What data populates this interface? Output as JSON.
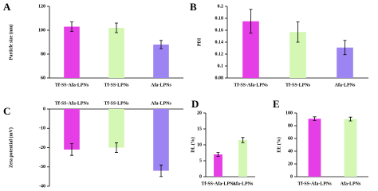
{
  "chart_data": [
    {
      "type": "bar",
      "panel": "A",
      "ylabel": "Particle size (nm)",
      "categories": [
        "Tf-SS-Afa-LPNs",
        "Tf-SS-LPNs",
        "Afa-LPNs"
      ],
      "values": [
        103,
        102,
        88
      ],
      "errors": [
        4,
        4,
        3.5
      ],
      "colors": [
        "#e63ee6",
        "#d4f7b4",
        "#9c85f2"
      ],
      "ylim": [
        60,
        120
      ],
      "yticks": [
        60,
        80,
        100,
        120
      ],
      "x_axis_position": "bottom"
    },
    {
      "type": "bar",
      "panel": "B",
      "ylabel": "PDI",
      "categories": [
        "Tf-SS-Afa-LPNs",
        "Tf-SS-LPNs",
        "Afa-LPNs"
      ],
      "values": [
        0.175,
        0.157,
        0.131
      ],
      "errors": [
        0.02,
        0.017,
        0.012
      ],
      "colors": [
        "#e63ee6",
        "#d4f7b4",
        "#9c85f2"
      ],
      "ylim": [
        0.08,
        0.2
      ],
      "yticks": [
        0.08,
        0.1,
        0.12,
        0.14,
        0.16,
        0.18,
        0.2
      ],
      "x_axis_position": "bottom"
    },
    {
      "type": "bar",
      "panel": "C",
      "ylabel": "Zeta potential (mV)",
      "categories": [
        "Tf-SS-Afa-LPNs",
        "Tf-SS-LPNs",
        "Afa-LPNs"
      ],
      "values": [
        -21,
        -20,
        -32
      ],
      "errors": [
        3,
        2.5,
        3
      ],
      "colors": [
        "#e63ee6",
        "#d4f7b4",
        "#9c85f2"
      ],
      "ylim": [
        -40,
        0
      ],
      "yticks": [
        0,
        -10,
        -20,
        -30,
        -40
      ],
      "x_axis_position": "top"
    },
    {
      "type": "bar",
      "panel": "D",
      "ylabel": "DL (%)",
      "categories": [
        "Tf-SS-Afa-LPNs",
        "Afa-LPNs"
      ],
      "values": [
        7,
        11.5
      ],
      "errors": [
        0.6,
        0.8
      ],
      "colors": [
        "#e63ee6",
        "#d4f7b4"
      ],
      "ylim": [
        0,
        20
      ],
      "yticks": [
        0,
        5,
        10,
        15,
        20
      ],
      "x_axis_position": "bottom"
    },
    {
      "type": "bar",
      "panel": "E",
      "ylabel": "EE (%)",
      "categories": [
        "Tf-SS-Afa-LPNs",
        "Afa-LPNs"
      ],
      "values": [
        91,
        90.5
      ],
      "errors": [
        3,
        3
      ],
      "colors": [
        "#e63ee6",
        "#d4f7b4"
      ],
      "ylim": [
        0,
        100
      ],
      "yticks": [
        0,
        20,
        40,
        60,
        80,
        100
      ],
      "x_axis_position": "bottom"
    }
  ]
}
